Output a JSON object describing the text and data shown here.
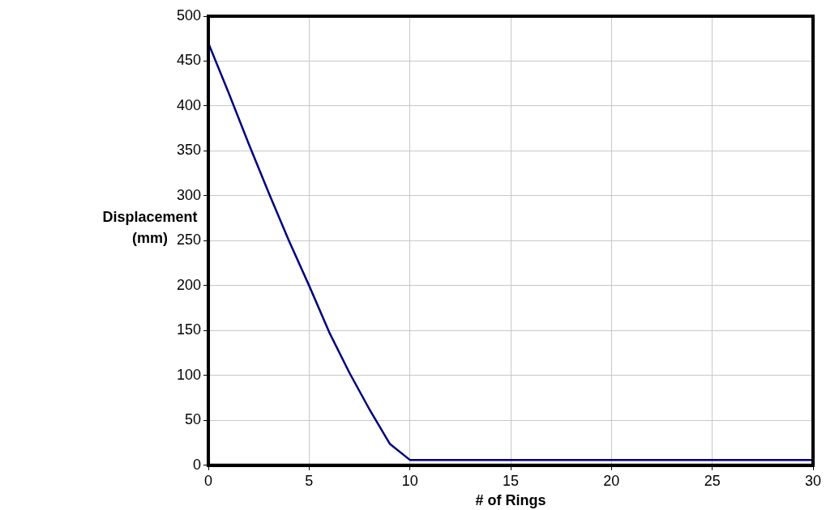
{
  "chart_data": {
    "type": "line",
    "xlabel": "# of Rings",
    "ylabel": "Displacement\n(mm)",
    "series": [
      {
        "color": "#000080",
        "x": [
          0,
          1,
          2,
          3,
          4,
          5,
          6,
          7,
          8,
          9,
          10,
          15,
          20,
          25,
          30
        ],
        "values": [
          470,
          415,
          358,
          303,
          250,
          200,
          148,
          103,
          62,
          24,
          6,
          6,
          6,
          6,
          6
        ]
      }
    ],
    "xlim": [
      0,
      30
    ],
    "xticks": [
      0,
      5,
      10,
      15,
      20,
      25,
      30
    ],
    "ylim": [
      0,
      500
    ],
    "yticks": [
      0,
      50,
      100,
      150,
      200,
      250,
      300,
      350,
      400,
      450,
      500
    ],
    "grid": true,
    "legend": false,
    "marker": "none",
    "line_style": "solid"
  }
}
